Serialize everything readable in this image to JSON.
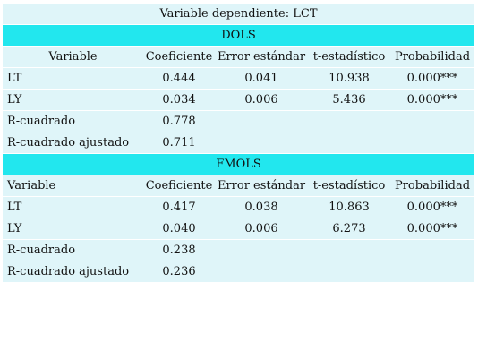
{
  "title": "Variable dependiente: LCT",
  "sections": [
    {
      "name": "DOLS",
      "headers": [
        "Variable",
        "Coeficiente",
        "Error estándar",
        "t-estadístico",
        "Probabilidad"
      ],
      "rows": [
        [
          "LT",
          "0.444",
          "0.041",
          "10.938",
          "0.000***"
        ],
        [
          "LY",
          "0.034",
          "0.006",
          "5.436",
          "0.000***"
        ],
        [
          "R-cuadrado",
          "0.778",
          "",
          "",
          ""
        ],
        [
          "R-cuadrado ajustado",
          "0.711",
          "",
          "",
          ""
        ]
      ]
    },
    {
      "name": "FMOLS",
      "headers": [
        "Variable",
        "Coeficiente",
        "Error estándar",
        "t-estadístico",
        "Probabilidad"
      ],
      "rows": [
        [
          "LT",
          "0.417",
          "0.038",
          "10.863",
          "0.000***"
        ],
        [
          "LY",
          "0.040",
          "0.006",
          "6.273",
          "0.000***"
        ],
        [
          "R-cuadrado",
          "0.238",
          "",
          "",
          ""
        ],
        [
          "R-cuadrado ajustado",
          "0.236",
          "",
          "",
          ""
        ]
      ]
    }
  ]
}
